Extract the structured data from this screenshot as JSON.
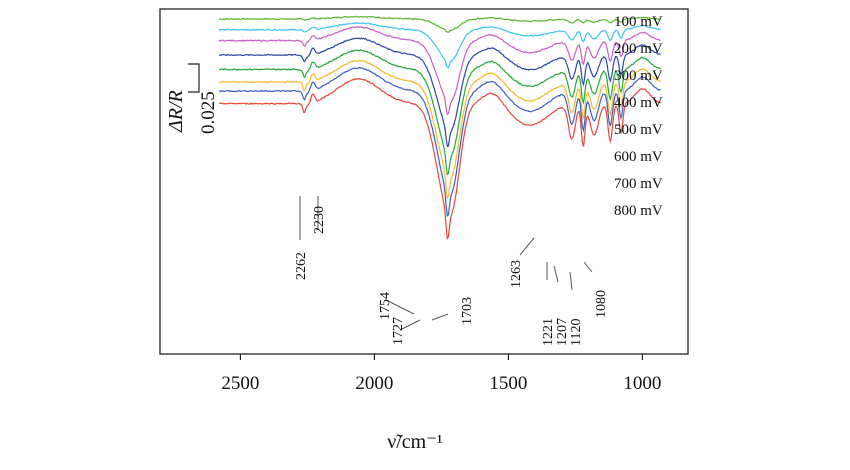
{
  "chart_data": {
    "type": "line",
    "title": "",
    "xlabel": "ν̃/cm⁻¹",
    "ylabel": "ΔR/R",
    "xlim": [
      2800,
      830
    ],
    "x_reversed": true,
    "xticks": [
      2500,
      2000,
      1500,
      1000
    ],
    "xtick_labels": [
      "2500",
      "2000",
      "1500",
      "1000"
    ],
    "grid": false,
    "legend": "labels at right end of each trace",
    "scale_bar": {
      "label": "ΔR/R",
      "value": "0.025"
    },
    "series": [
      {
        "name": "100 mV",
        "color": "#55b72e",
        "offset": 0.0,
        "amplitude": 0.1
      },
      {
        "name": "200 mV",
        "color": "#3cc4ee",
        "offset": -0.06,
        "amplitude": 0.28
      },
      {
        "name": "300 mV",
        "color": "#c65fc6",
        "offset": -0.12,
        "amplitude": 0.55
      },
      {
        "name": "400 mV",
        "color": "#2a47a8",
        "offset": -0.2,
        "amplitude": 0.68
      },
      {
        "name": "500 mV",
        "color": "#22a83a",
        "offset": -0.28,
        "amplitude": 0.78
      },
      {
        "name": "600 mV",
        "color": "#f2b92b",
        "offset": -0.35,
        "amplitude": 0.86
      },
      {
        "name": "700 mV",
        "color": "#3a5fc4",
        "offset": -0.4,
        "amplitude": 0.93
      },
      {
        "name": "800 mV",
        "color": "#e8453c",
        "offset": -0.47,
        "amplitude": 1.0
      }
    ],
    "annotations": [
      {
        "label": "2262",
        "x": 2262
      },
      {
        "label": "2230",
        "x": 2230
      },
      {
        "label": "1754",
        "x": 1754
      },
      {
        "label": "1727",
        "x": 1727
      },
      {
        "label": "1703",
        "x": 1703
      },
      {
        "label": "1263",
        "x": 1263
      },
      {
        "label": "1221",
        "x": 1221
      },
      {
        "label": "1207",
        "x": 1207
      },
      {
        "label": "1120",
        "x": 1120
      },
      {
        "label": "1080",
        "x": 1080
      }
    ]
  }
}
